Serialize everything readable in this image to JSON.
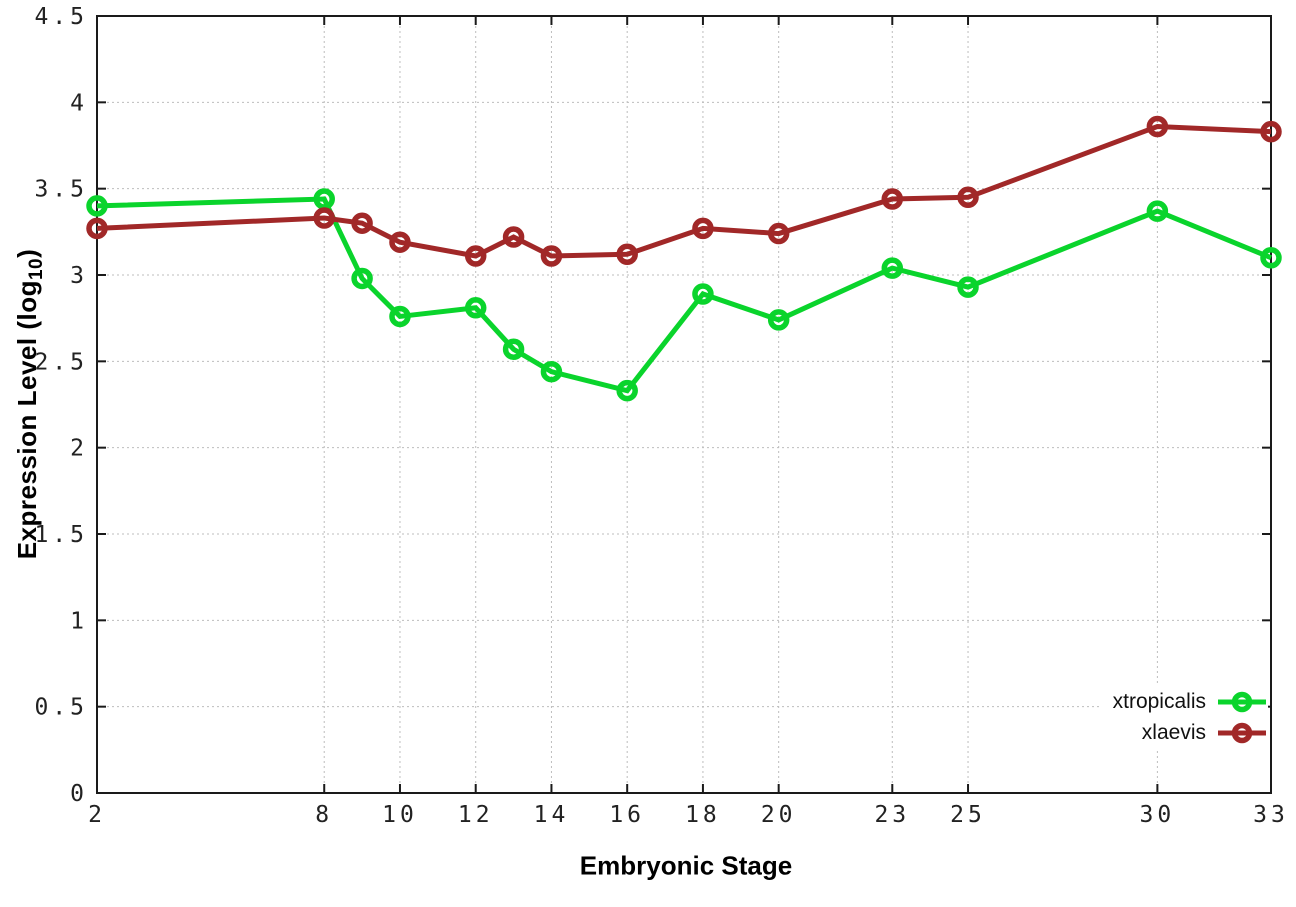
{
  "chart_data": {
    "type": "line",
    "title": "",
    "xlabel": "Embryonic Stage",
    "ylabel": "Expression Level (log10)",
    "ylabel_parts": {
      "main": "Expression Level (log",
      "sub": "10",
      "close": ")"
    },
    "x": [
      2,
      8,
      9,
      10,
      12,
      13,
      14,
      16,
      18,
      20,
      23,
      25,
      30,
      33
    ],
    "series": [
      {
        "name": "xtropicalis",
        "color": "#0ad42c",
        "values": [
          3.4,
          3.44,
          2.98,
          2.76,
          2.81,
          2.57,
          2.44,
          2.33,
          2.89,
          2.74,
          3.04,
          2.93,
          3.37,
          3.1
        ]
      },
      {
        "name": "xlaevis",
        "color": "#a12828",
        "values": [
          3.27,
          3.33,
          3.3,
          3.19,
          3.11,
          3.22,
          3.11,
          3.12,
          3.27,
          3.24,
          3.44,
          3.45,
          3.86,
          3.83
        ]
      }
    ],
    "xticks": [
      2,
      8,
      10,
      12,
      14,
      16,
      18,
      20,
      23,
      25,
      30,
      33
    ],
    "yticks": [
      0,
      0.5,
      1,
      1.5,
      2,
      2.5,
      3,
      3.5,
      4,
      4.5
    ],
    "xlim": [
      2,
      33
    ],
    "ylim": [
      0,
      4.5
    ],
    "grid": true,
    "legend_position": "bottom-right",
    "marker": "open-circle",
    "grid_color": "#bdbdbd",
    "border_color": "#1a1a1a",
    "tick_label_color": "#222222"
  }
}
